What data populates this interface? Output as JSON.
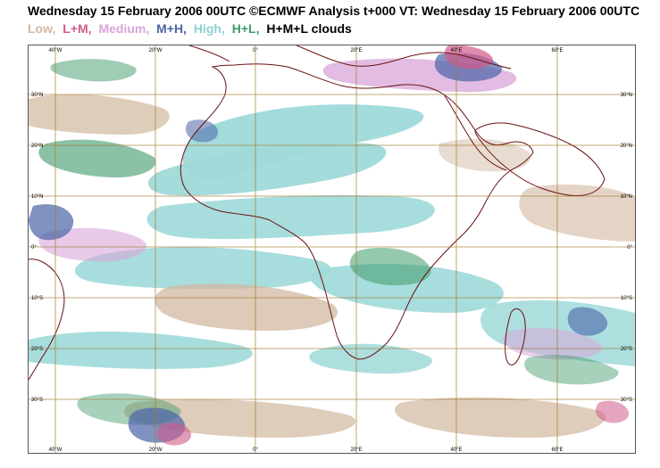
{
  "header": {
    "title": "Wednesday 15 February 2006 00UTC ©ECMWF Analysis t+000 VT: Wednesday 15 February 2006 00UTC"
  },
  "legend": {
    "items": [
      {
        "label": "Low,",
        "color": "#d2b8a0"
      },
      {
        "label": "L+M,",
        "color": "#d05a8a"
      },
      {
        "label": "Medium,",
        "color": "#d8a6d8"
      },
      {
        "label": "M+H,",
        "color": "#4a64a8"
      },
      {
        "label": "High,",
        "color": "#a8d8dc"
      },
      {
        "label": "H+L,",
        "color": "#3e9a6a"
      },
      {
        "label": "H+M+L clouds",
        "color": "#000000"
      }
    ]
  },
  "map": {
    "longitude_labels": [
      "40°W",
      "20°W",
      "0°",
      "20°E",
      "40°E",
      "60°E"
    ],
    "latitude_labels": [
      "30°N",
      "20°N",
      "10°N",
      "0°",
      "10°S",
      "20°S",
      "30°S"
    ],
    "colors": {
      "low": "#d2b8a0",
      "lm": "#d05a8a",
      "medium": "#d8a6d8",
      "mh": "#4a64a8",
      "high": "#9fd9d9",
      "hl": "#3e9a6a",
      "coast": "#6b1010",
      "grid": "#a07a2a"
    }
  }
}
